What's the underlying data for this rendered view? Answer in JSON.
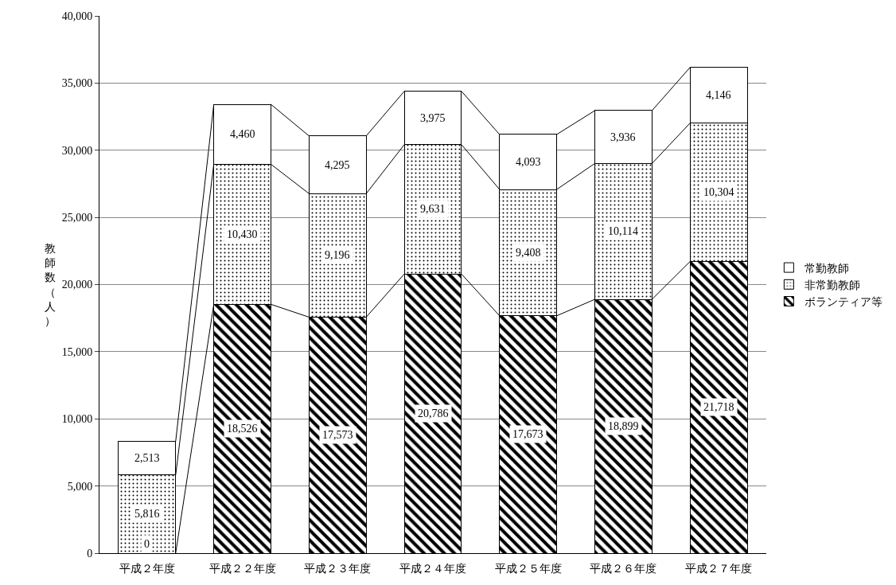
{
  "chart_data": {
    "type": "bar",
    "stacked": true,
    "ylabel": "教師数（人）",
    "categories": [
      "平成２年度",
      "平成２２年度",
      "平成２３年度",
      "平成２４年度",
      "平成２５年度",
      "平成２６年度",
      "平成２７年度"
    ],
    "series": [
      {
        "name": "ボランティア等",
        "color": "#000000",
        "values": [
          0,
          18526,
          17573,
          20786,
          17673,
          18899,
          21718
        ],
        "value_labels": [
          "0",
          "18,526",
          "17,573",
          "20,786",
          "17,673",
          "18,899",
          "21,718"
        ]
      },
      {
        "name": "非常勤教師",
        "color": "#000000",
        "values": [
          5816,
          10430,
          9196,
          9631,
          9408,
          10114,
          10304
        ],
        "value_labels": [
          "5,816",
          "10,430",
          "9,196",
          "9,631",
          "9,408",
          "10,114",
          "10,304"
        ]
      },
      {
        "name": "常勤教師",
        "color": "#ffffff",
        "values": [
          2513,
          4460,
          4295,
          3975,
          4093,
          3936,
          4146
        ],
        "value_labels": [
          "2,513",
          "4,460",
          "4,295",
          "3,975",
          "4,093",
          "3,936",
          "4,146"
        ]
      }
    ],
    "ylim": [
      0,
      40000
    ],
    "yticks": [
      0,
      {
        "value": 5000,
        "label": "5,000"
      },
      {
        "value": 10000,
        "label": "10,000"
      },
      {
        "value": 15000,
        "label": "15,000"
      },
      {
        "value": 20000,
        "label": "20,000"
      },
      {
        "value": 25000,
        "label": "25,000"
      },
      {
        "value": 30000,
        "label": "30,000"
      },
      {
        "value": 35000,
        "label": "35,000"
      },
      {
        "value": 40000,
        "label": "40,000"
      }
    ],
    "grid": "y",
    "legend": "right"
  }
}
